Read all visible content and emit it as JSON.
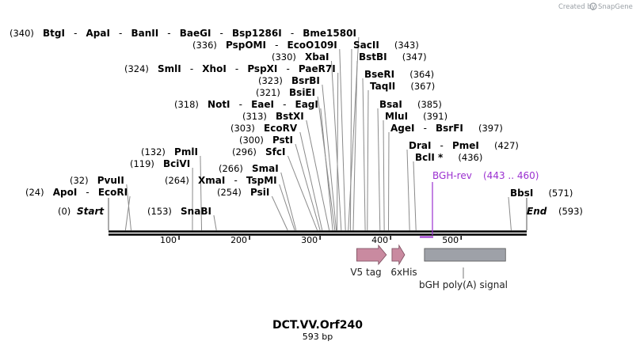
{
  "credit": {
    "prefix": "Created by",
    "brand": "SnapGene"
  },
  "sequence": {
    "name": "DCT.VV.Orf240",
    "length_label": "593 bp",
    "length": 593
  },
  "ends": {
    "start_label": "Start",
    "start_pos": "(0)",
    "end_label": "End",
    "end_pos": "(593)"
  },
  "ticks": [
    "100",
    "200",
    "300",
    "400",
    "500"
  ],
  "sites": [
    {
      "pos_label": "(340)",
      "enzymes": [
        "BtgI",
        "ApaI",
        "BanII",
        "BaeGI",
        "Bsp1286I",
        "Bme1580I"
      ],
      "cut": 340
    },
    {
      "pos_label": "(336)",
      "enzymes": [
        "PspOMI",
        "EcoO109I"
      ],
      "cut": 336
    },
    {
      "pos_label": "(330)",
      "enzymes": [
        "XbaI"
      ],
      "cut": 330
    },
    {
      "pos_label": "(324)",
      "enzymes": [
        "SmlI",
        "XhoI",
        "PspXI",
        "PaeR7I"
      ],
      "cut": 324
    },
    {
      "pos_label": "(323)",
      "enzymes": [
        "BsrBI"
      ],
      "cut": 323
    },
    {
      "pos_label": "(321)",
      "enzymes": [
        "BsiEI"
      ],
      "cut": 321
    },
    {
      "pos_label": "(318)",
      "enzymes": [
        "NotI",
        "EaeI",
        "EagI"
      ],
      "cut": 318
    },
    {
      "pos_label": "(313)",
      "enzymes": [
        "BstXI"
      ],
      "cut": 313
    },
    {
      "pos_label": "(303)",
      "enzymes": [
        "EcoRV"
      ],
      "cut": 303
    },
    {
      "pos_label": "(300)",
      "enzymes": [
        "PstI"
      ],
      "cut": 300
    },
    {
      "pos_label": "(296)",
      "enzymes": [
        "SfcI"
      ],
      "cut": 296
    },
    {
      "pos_label": "(266)",
      "enzymes": [
        "SmaI"
      ],
      "cut": 266
    },
    {
      "pos_label": "(264)",
      "enzymes": [
        "XmaI",
        "TspMI"
      ],
      "cut": 264
    },
    {
      "pos_label": "(254)",
      "enzymes": [
        "PsiI"
      ],
      "cut": 254
    },
    {
      "pos_label": "(153)",
      "enzymes": [
        "SnaBI"
      ],
      "cut": 153
    },
    {
      "pos_label": "(132)",
      "enzymes": [
        "PmlI"
      ],
      "cut": 132
    },
    {
      "pos_label": "(119)",
      "enzymes": [
        "BciVI"
      ],
      "cut": 119
    },
    {
      "pos_label": "(32)",
      "enzymes": [
        "PvuII"
      ],
      "cut": 32
    },
    {
      "pos_label": "(24)",
      "enzymes": [
        "ApoI",
        "EcoRI"
      ],
      "cut": 24
    },
    {
      "pos_label": "(343)",
      "enzymes": [
        "SacII"
      ],
      "cut": 343
    },
    {
      "pos_label": "(347)",
      "enzymes": [
        "BstBI"
      ],
      "cut": 347
    },
    {
      "pos_label": "(364)",
      "enzymes": [
        "BseRI"
      ],
      "cut": 364
    },
    {
      "pos_label": "(367)",
      "enzymes": [
        "TaqII"
      ],
      "cut": 367
    },
    {
      "pos_label": "(385)",
      "enzymes": [
        "BsaI"
      ],
      "cut": 385
    },
    {
      "pos_label": "(391)",
      "enzymes": [
        "MluI"
      ],
      "cut": 391
    },
    {
      "pos_label": "(397)",
      "enzymes": [
        "AgeI",
        "BsrFI"
      ],
      "cut": 397
    },
    {
      "pos_label": "(427)",
      "enzymes": [
        "DraI",
        "PmeI"
      ],
      "cut": 427
    },
    {
      "pos_label": "(436)",
      "enzymes": [
        "BclI *"
      ],
      "cut": 436
    },
    {
      "pos_label": "(571)",
      "enzymes": [
        "BbsI"
      ],
      "cut": 571
    }
  ],
  "primer": {
    "name": "BGH-rev",
    "range": "(443 .. 460)",
    "start": 443,
    "end": 460,
    "color": "#9b30d0"
  },
  "features": [
    {
      "name": "V5 tag",
      "type": "arrow",
      "start": 352,
      "end": 394,
      "color": "#c98aa0"
    },
    {
      "name": "6xHis",
      "type": "arrow",
      "start": 402,
      "end": 420,
      "color": "#c98aa0"
    },
    {
      "name": "bGH poly(A) signal",
      "type": "box",
      "start": 448,
      "end": 563,
      "color": "#9ea1a8"
    }
  ]
}
